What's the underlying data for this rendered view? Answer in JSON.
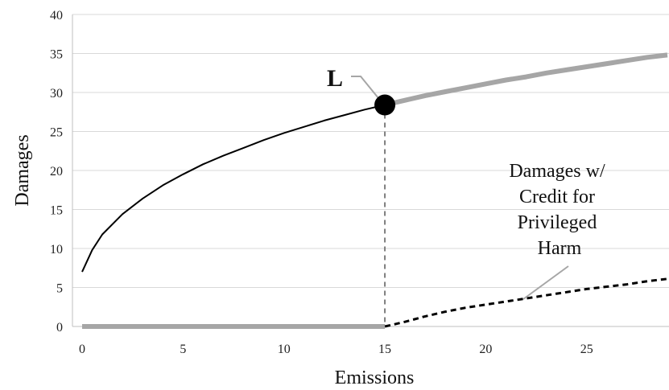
{
  "chart_data": {
    "type": "line",
    "xlabel": "Emissions",
    "ylabel": "Damages",
    "xlim": [
      0,
      29
    ],
    "ylim": [
      0,
      40
    ],
    "x_ticks": [
      "0",
      "5",
      "10",
      "15",
      "20",
      "25"
    ],
    "y_ticks": [
      "0",
      "5",
      "10",
      "15",
      "20",
      "25",
      "30",
      "35",
      "40"
    ],
    "grid": true,
    "point_label": "L",
    "point": {
      "x": 15,
      "y": 28.4
    },
    "annotation_lines": [
      "Damages w/",
      "Credit for",
      "Privileged",
      "Harm"
    ],
    "colors": {
      "damages": "#000000",
      "damages_beyond_L": "#a6a6a6",
      "privileged_baseline": "#a6a6a6",
      "credit": "#000000",
      "grid": "#d9d9d9",
      "dropline": "#7f7f7f"
    },
    "series": [
      {
        "key": "damages",
        "style": "solid-thin",
        "x": [
          0,
          0.5,
          1,
          2,
          3,
          4,
          5,
          6,
          7,
          8,
          9,
          10,
          11,
          12,
          13,
          14,
          15
        ],
        "y": [
          7.0,
          9.8,
          11.8,
          14.4,
          16.4,
          18.1,
          19.5,
          20.8,
          21.9,
          22.9,
          23.9,
          24.8,
          25.6,
          26.4,
          27.1,
          27.8,
          28.4
        ]
      },
      {
        "key": "damages_beyond_L",
        "style": "solid-thick",
        "x": [
          15,
          16,
          17,
          18,
          19,
          20,
          21,
          22,
          23,
          24,
          25,
          26,
          27,
          28,
          29
        ],
        "y": [
          28.4,
          29.0,
          29.6,
          30.1,
          30.6,
          31.1,
          31.6,
          32.0,
          32.5,
          32.9,
          33.3,
          33.7,
          34.1,
          34.5,
          34.8
        ]
      },
      {
        "key": "privileged_baseline",
        "style": "solid-thick",
        "x": [
          0,
          15
        ],
        "y": [
          0,
          0
        ]
      },
      {
        "key": "credit",
        "style": "dashed",
        "x": [
          15,
          16,
          17,
          18,
          19,
          20,
          21,
          22,
          23,
          24,
          25,
          26,
          27,
          28,
          29
        ],
        "y": [
          0,
          0.6,
          1.3,
          1.9,
          2.4,
          2.8,
          3.2,
          3.6,
          4.0,
          4.4,
          4.8,
          5.1,
          5.4,
          5.8,
          6.1
        ]
      }
    ]
  }
}
